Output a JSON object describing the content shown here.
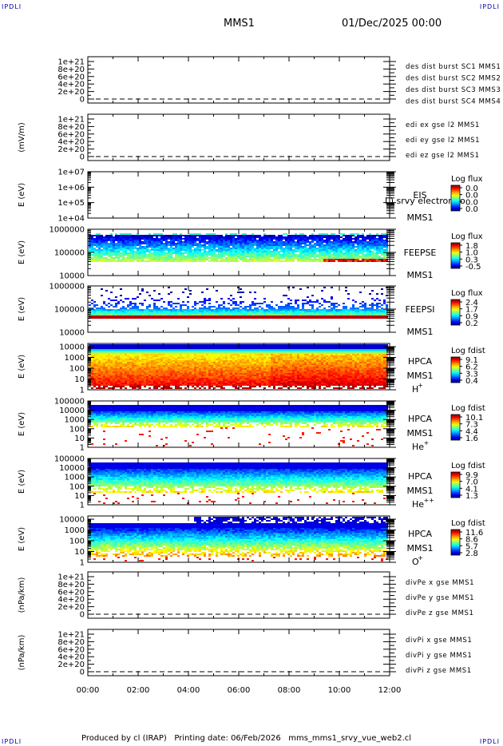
{
  "corners": {
    "tl": "IPDLI",
    "tr": "IPDLI",
    "bl": "IPDLI",
    "br": "IPDLI"
  },
  "header": {
    "spacecraft": "MMS1",
    "datetime": "01/Dec/2025 00:00"
  },
  "footer": {
    "text": "Produced by cl (IRAP)   Printing date: 06/Feb/2026   mms_mms1_srvy_vue_web2.cl"
  },
  "chart_data": {
    "type": "stacked-timeseries",
    "x_ticks": [
      "00:00",
      "02:00",
      "04:00",
      "06:00",
      "08:00",
      "10:00",
      "12:00"
    ],
    "x_range_hours": [
      0,
      12
    ],
    "panels": [
      {
        "id": "des",
        "ylabel": "",
        "y_ticks": [
          "1e+21",
          "8e+20",
          "6e+20",
          "4e+20",
          "2e+20",
          "0"
        ],
        "legend": [
          {
            "text": "des dist burst SC1 MMS1",
            "color": "#0000cc"
          },
          {
            "text": "des dist burst SC2 MMS2",
            "color": "#cc00cc"
          },
          {
            "text": "des dist burst SC3 MMS3",
            "color": "#dd0000"
          },
          {
            "text": "des dist burst SC4 MMS4",
            "color": "#00bb00"
          }
        ]
      },
      {
        "id": "edi",
        "ylabel": "(mV/m)",
        "y_ticks": [
          "1e+21",
          "8e+20",
          "6e+20",
          "4e+20",
          "2e+20",
          "0"
        ],
        "legend": [
          {
            "text": "edi ex gse l2 MMS1",
            "color": "#dd0000"
          },
          {
            "text": "edi ey gse l2 MMS1",
            "color": "#00bb00"
          },
          {
            "text": "edi ez gse l2 MMS1",
            "color": "#0000cc"
          }
        ]
      },
      {
        "id": "eis",
        "ylabel": "E (eV)",
        "y_ticks": [
          "1e+07",
          "1e+06",
          "1e+05",
          "1e+04"
        ],
        "log_range": [
          4,
          7
        ],
        "instrument": [
          "EIS",
          "MMS1"
        ],
        "overlay": "I ) srvy electron to",
        "colorbar_title": "Log flux",
        "colorbar_ticks": [
          "0.0",
          "0.0",
          "0.0",
          "0.0"
        ]
      },
      {
        "id": "feepse",
        "ylabel": "E (eV)",
        "y_ticks": [
          "1000000",
          "100000",
          "10000"
        ],
        "log_range": [
          4,
          6
        ],
        "instrument": [
          "FEEPSE",
          "MMS1"
        ],
        "colorbar_title": "Log flux",
        "colorbar_ticks": [
          "1.8",
          "1.0",
          "0.3",
          "-0.5"
        ]
      },
      {
        "id": "feepsi",
        "ylabel": "E (eV)",
        "y_ticks": [
          "1000000",
          "100000",
          "10000"
        ],
        "log_range": [
          4,
          6
        ],
        "instrument": [
          "FEEPSI",
          "MMS1"
        ],
        "colorbar_title": "Log flux",
        "colorbar_ticks": [
          "2.4",
          "1.7",
          "0.9",
          "0.2"
        ]
      },
      {
        "id": "hpca_h",
        "ylabel": "E (eV)",
        "y_ticks": [
          "10000",
          "1000",
          "100",
          "10",
          "1"
        ],
        "log_range": [
          0,
          4.3
        ],
        "instrument": [
          "HPCA",
          "MMS1"
        ],
        "species": "H",
        "species_sup": "+",
        "colorbar_title": "Log fdist",
        "colorbar_ticks": [
          "9.1",
          "6.2",
          "3.3",
          "0.4"
        ]
      },
      {
        "id": "hpca_he",
        "ylabel": "E (eV)",
        "y_ticks": [
          "100000",
          "10000",
          "1000",
          "100",
          "10",
          "1"
        ],
        "log_range": [
          0,
          5
        ],
        "instrument": [
          "HPCA",
          "MMS1"
        ],
        "species": "He",
        "species_sup": "+",
        "colorbar_title": "Log fdist",
        "colorbar_ticks": [
          "10.1",
          "7.3",
          "4.4",
          "1.6"
        ]
      },
      {
        "id": "hpca_hepp",
        "ylabel": "E (eV)",
        "y_ticks": [
          "100000",
          "10000",
          "1000",
          "100",
          "10",
          "1"
        ],
        "log_range": [
          0,
          5
        ],
        "instrument": [
          "HPCA",
          "MMS1"
        ],
        "species": "He",
        "species_sup": "++",
        "colorbar_title": "Log fdist",
        "colorbar_ticks": [
          "9.9",
          "7.0",
          "4.1",
          "1.3"
        ]
      },
      {
        "id": "hpca_o",
        "ylabel": "E (eV)",
        "y_ticks": [
          "10000",
          "1000",
          "100",
          "10",
          "1"
        ],
        "log_range": [
          0,
          4.3
        ],
        "instrument": [
          "HPCA",
          "MMS1"
        ],
        "species": "O",
        "species_sup": "+",
        "colorbar_title": "Log fdist",
        "colorbar_ticks": [
          "11.6",
          "8.6",
          "5.7",
          "2.8"
        ]
      },
      {
        "id": "divpe",
        "ylabel": "(nPa/km)",
        "y_ticks": [
          "1e+21",
          "8e+20",
          "6e+20",
          "4e+20",
          "2e+20",
          "0"
        ],
        "legend": [
          {
            "text": "divPe x gse MMS1",
            "color": "#dd0000"
          },
          {
            "text": "divPe y gse MMS1",
            "color": "#00bb00"
          },
          {
            "text": "divPe z gse MMS1",
            "color": "#0000cc"
          }
        ]
      },
      {
        "id": "divpi",
        "ylabel": "(nPa/km)",
        "y_ticks": [
          "1e+21",
          "8e+20",
          "6e+20",
          "4e+20",
          "2e+20",
          "0"
        ],
        "legend": [
          {
            "text": "divPi x gse MMS1",
            "color": "#dd0000"
          },
          {
            "text": "divPi y gse MMS1",
            "color": "#00bb00"
          },
          {
            "text": "divPi z gse MMS1",
            "color": "#0000cc"
          }
        ]
      }
    ]
  }
}
